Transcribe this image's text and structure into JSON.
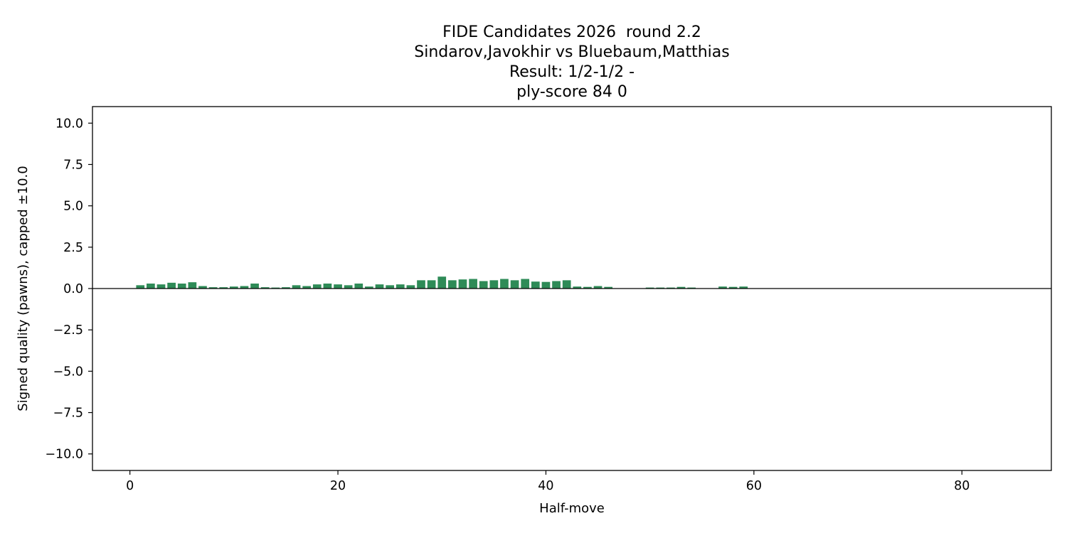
{
  "chart_data": {
    "type": "bar",
    "title_lines": [
      "FIDE Candidates 2026  round 2.2",
      "Sindarov,Javokhir vs Bluebaum,Matthias",
      "Result: 1/2-1/2 -",
      "ply-score 84 0"
    ],
    "xlabel": "Half-move",
    "ylabel": "Signed quality (pawns), capped ±10.0",
    "xlim": [
      -3.6,
      88.6
    ],
    "ylim": [
      -11,
      11
    ],
    "x_ticks": [
      0,
      20,
      40,
      60,
      80
    ],
    "y_ticks": [
      10.0,
      7.5,
      5.0,
      2.5,
      0.0,
      -2.5,
      -5.0,
      -7.5,
      -10.0
    ],
    "y_tick_labels": [
      "10.0",
      "7.5",
      "5.0",
      "2.5",
      "0.0",
      "−2.5",
      "−5.0",
      "−7.5",
      "−10.0"
    ],
    "bar_color": "#2e8b57",
    "zero_line": true,
    "grid": false,
    "x": [
      1,
      2,
      3,
      4,
      5,
      6,
      7,
      8,
      9,
      10,
      11,
      12,
      13,
      14,
      15,
      16,
      17,
      18,
      19,
      20,
      21,
      22,
      23,
      24,
      25,
      26,
      27,
      28,
      29,
      30,
      31,
      32,
      33,
      34,
      35,
      36,
      37,
      38,
      39,
      40,
      41,
      42,
      43,
      44,
      45,
      46,
      47,
      48,
      49,
      50,
      51,
      52,
      53,
      54,
      55,
      56,
      57,
      58,
      59,
      60,
      61,
      62,
      63,
      64,
      65,
      66,
      67,
      68,
      69,
      70,
      71,
      72,
      73,
      74,
      75,
      76,
      77,
      78,
      79,
      80,
      81,
      82,
      83,
      84
    ],
    "values": [
      0.2,
      0.3,
      0.25,
      0.35,
      0.3,
      0.38,
      0.15,
      0.08,
      0.08,
      0.12,
      0.15,
      0.3,
      0.08,
      0.06,
      0.08,
      0.2,
      0.15,
      0.25,
      0.3,
      0.25,
      0.2,
      0.3,
      0.12,
      0.25,
      0.2,
      0.25,
      0.2,
      0.5,
      0.5,
      0.72,
      0.5,
      0.55,
      0.58,
      0.45,
      0.5,
      0.58,
      0.5,
      0.58,
      0.42,
      0.4,
      0.45,
      0.5,
      0.12,
      0.1,
      0.15,
      0.1,
      0.02,
      0.02,
      0.0,
      0.06,
      0.06,
      0.06,
      0.1,
      0.06,
      0.02,
      0.02,
      0.12,
      0.1,
      0.12,
      0.02,
      0.0,
      0.0,
      0.0,
      0.0,
      -0.02,
      0.0,
      0.0,
      0.0,
      0.0,
      0.0,
      0.0,
      0.0,
      0.0,
      0.0,
      0.0,
      0.0,
      0.0,
      0.0,
      0.0,
      0.0,
      0.0,
      0.0,
      0.0,
      0.0
    ]
  }
}
